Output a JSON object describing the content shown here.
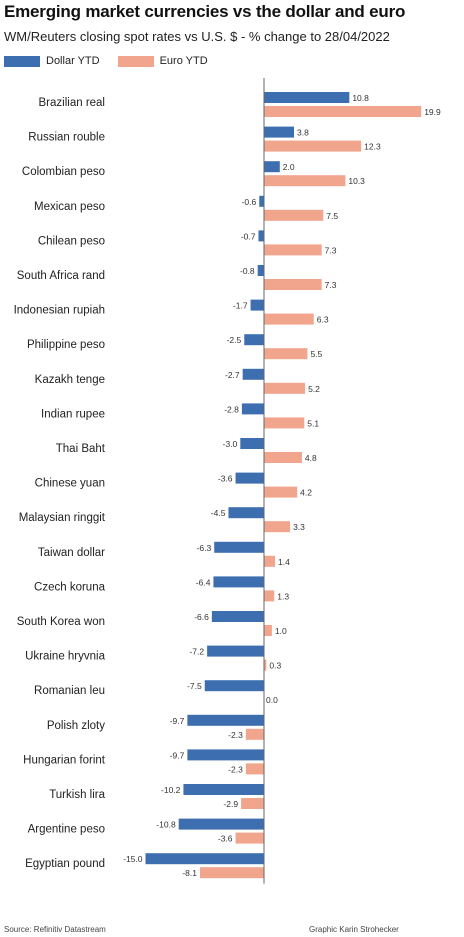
{
  "header": {
    "title": "Emerging market currencies vs the dollar and euro",
    "subtitle": "WM/Reuters closing spot rates vs U.S. $ - % change to 28/04/2022"
  },
  "footer": {
    "source": "Source: Refinitiv Datastream",
    "credit": "Graphic Karin Strohecker"
  },
  "colors": {
    "dollar": "#3d6fb0",
    "euro": "#f0a58c",
    "axis": "#666666"
  },
  "chart_data": {
    "type": "bar",
    "orientation": "horizontal",
    "title": "Emerging market currencies vs the dollar and euro",
    "subtitle": "WM/Reuters closing spot rates vs U.S. $ - % change to 28/04/2022",
    "legend_position": "top-left",
    "grid": false,
    "categories": [
      "Brazilian real",
      "Russian rouble",
      "Colombian peso",
      "Mexican peso",
      "Chilean peso",
      "South Africa rand",
      "Indonesian rupiah",
      "Philippine peso",
      "Kazakh tenge",
      "Indian rupee",
      "Thai Baht",
      "Chinese yuan",
      "Malaysian ringgit",
      "Taiwan dollar",
      "Czech koruna",
      "South Korea won",
      "Ukraine hryvnia",
      "Romanian leu",
      "Polish zloty",
      "Hungarian forint",
      "Turkish lira",
      "Argentine peso",
      "Egyptian pound"
    ],
    "series": [
      {
        "name": "Dollar YTD",
        "values": [
          10.8,
          3.8,
          2.0,
          -0.6,
          -0.7,
          -0.8,
          -1.7,
          -2.5,
          -2.7,
          -2.8,
          -3.0,
          -3.6,
          -4.5,
          -6.3,
          -6.4,
          -6.6,
          -7.2,
          -7.5,
          -9.7,
          -9.7,
          -10.2,
          -10.8,
          -15.0
        ],
        "labels": [
          "10.8",
          "3.8",
          "2.0",
          "-0.6",
          "-0.7",
          "-0.8",
          "-1.7",
          "-2.5",
          "-2.7",
          "-2.8",
          "-3.0",
          "-3.6",
          "-4.5",
          "-6.3",
          "-6.4",
          "-6.6",
          "-7.2",
          "-7.5",
          "-9.7",
          "-9.7",
          "-10.2",
          "-10.8",
          "-15.0"
        ]
      },
      {
        "name": "Euro YTD",
        "values": [
          19.9,
          12.3,
          10.3,
          7.5,
          7.3,
          7.3,
          6.3,
          5.5,
          5.2,
          5.1,
          4.8,
          4.2,
          3.3,
          1.4,
          1.3,
          1.0,
          0.3,
          0.0,
          -2.3,
          -2.3,
          -2.9,
          -3.6,
          -8.1
        ],
        "labels": [
          "19.9",
          "12.3",
          "10.3",
          "7.5",
          "7.3",
          "7.3",
          "6.3",
          "5.5",
          "5.2",
          "5.1",
          "4.8",
          "4.2",
          "3.3",
          "1.4",
          "1.3",
          "1.0",
          "0.3",
          "0.0",
          "-2.3",
          "-2.3",
          "-2.9",
          "-3.6",
          "-8.1"
        ]
      }
    ]
  }
}
